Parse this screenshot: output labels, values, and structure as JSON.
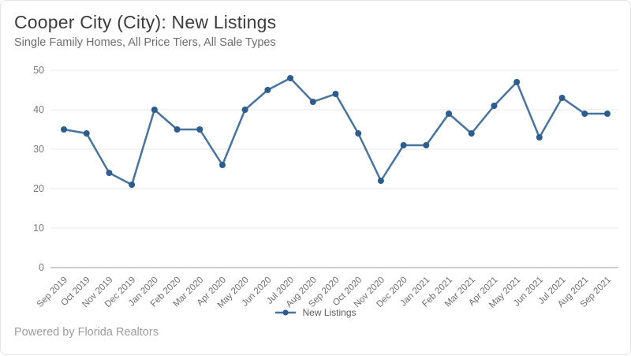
{
  "header": {
    "title": "Cooper City (City): New Listings",
    "subtitle": "Single Family Homes, All Price Tiers, All Sale Types"
  },
  "legend": {
    "label": "New Listings"
  },
  "footer": {
    "text": "Powered by Florida Realtors"
  },
  "colors": {
    "line": "#47749f",
    "marker": "#2d5d8e",
    "grid": "#e7e7e7",
    "axis": "#9b9b9b",
    "y_tick_label": "#7a7a7a",
    "x_tick_label": "#6e6e6e",
    "title": "#3d3d3d",
    "subtitle": "#6e6e6e",
    "footer": "#9c9c9c"
  },
  "chart_data": {
    "type": "line",
    "title": "Cooper City (City): New Listings",
    "subtitle": "Single Family Homes, All Price Tiers, All Sale Types",
    "categories": [
      "Sep 2019",
      "Oct 2019",
      "Nov 2019",
      "Dec 2019",
      "Jan 2020",
      "Feb 2020",
      "Mar 2020",
      "Apr 2020",
      "May 2020",
      "Jun 2020",
      "Jul 2020",
      "Aug 2020",
      "Sep 2020",
      "Oct 2020",
      "Nov 2020",
      "Dec 2020",
      "Jan 2021",
      "Feb 2021",
      "Mar 2021",
      "Apr 2021",
      "May 2021",
      "Jun 2021",
      "Jul 2021",
      "Aug 2021",
      "Sep 2021"
    ],
    "series": [
      {
        "name": "New Listings",
        "values": [
          35,
          34,
          24,
          21,
          40,
          35,
          35,
          26,
          40,
          45,
          48,
          42,
          44,
          34,
          22,
          31,
          31,
          39,
          34,
          41,
          47,
          33,
          43,
          39,
          39
        ]
      }
    ],
    "xlabel": "",
    "ylabel": "",
    "ylim": [
      0,
      50
    ],
    "yticks": [
      0,
      10,
      20,
      30,
      40,
      50
    ],
    "grid": "horizontal",
    "legend_position": "bottom"
  }
}
